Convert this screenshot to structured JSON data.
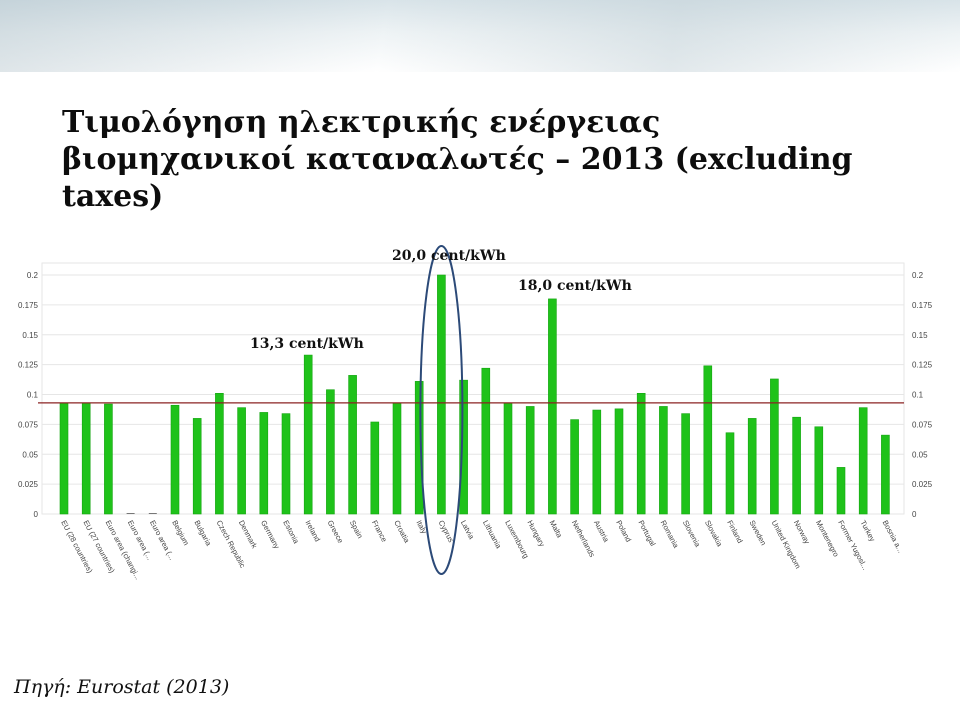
{
  "title": {
    "line1": "Τιμολόγηση ηλεκτρικής ενέργειας",
    "line2": "βιομηχανικοί καταναλωτές – 2013 (excluding",
    "line3": "taxes)"
  },
  "source": "Πηγή: Eurostat (2013)",
  "colors": {
    "bar": "#1fc21a",
    "bar_edge": "#14a511",
    "reference_line": "#8b2323",
    "highlight_ellipse": "#2c4a78",
    "grid": "#e6e6e6",
    "axis_text": "#444444"
  },
  "chart_data": {
    "type": "bar",
    "title": "",
    "xlabel": "",
    "ylabel": "",
    "ylim": [
      0,
      0.2
    ],
    "yticks": [
      "0",
      "0.025",
      "0.05",
      "0.075",
      "0.1",
      "0.125",
      "0.15",
      "0.175",
      "0.2"
    ],
    "grid": true,
    "reference_line": 0.093,
    "categories": [
      "EU (28 countries)",
      "EU (27 countries)",
      "Euro area (changi...",
      "Euro area (...",
      "Euro area (...",
      "Belgium",
      "Bulgaria",
      "Czech Republic",
      "Denmark",
      "Germany",
      "Estonia",
      "Ireland",
      "Greece",
      "Spain",
      "France",
      "Croatia",
      "Italy",
      "Cyprus",
      "Latvia",
      "Lithuania",
      "Luxembourg",
      "Hungary",
      "Malta",
      "Netherlands",
      "Austria",
      "Poland",
      "Portugal",
      "Romania",
      "Slovenia",
      "Slovakia",
      "Finland",
      "Sweden",
      "United Kingdom",
      "Norway",
      "Montenegro",
      "Former Yugosl...",
      "Turkey",
      "Bosnia a..."
    ],
    "values": [
      0.093,
      0.093,
      0.092,
      0,
      0,
      0.091,
      0.08,
      0.101,
      0.089,
      0.085,
      0.084,
      0.133,
      0.104,
      0.116,
      0.077,
      0.093,
      0.111,
      0.2,
      0.112,
      0.122,
      0.093,
      0.09,
      0.18,
      0.079,
      0.087,
      0.088,
      0.101,
      0.09,
      0.084,
      0.124,
      0.068,
      0.08,
      0.113,
      0.081,
      0.073,
      0.039,
      0.089,
      0.066
    ],
    "annotations": [
      {
        "text": "20,0 cent/kWh",
        "category": "Cyprus"
      },
      {
        "text": "18,0 cent/kWh",
        "category": "Malta"
      },
      {
        "text": "13,3 cent/kWh",
        "category": "Ireland"
      }
    ],
    "highlight_category": "Cyprus"
  }
}
